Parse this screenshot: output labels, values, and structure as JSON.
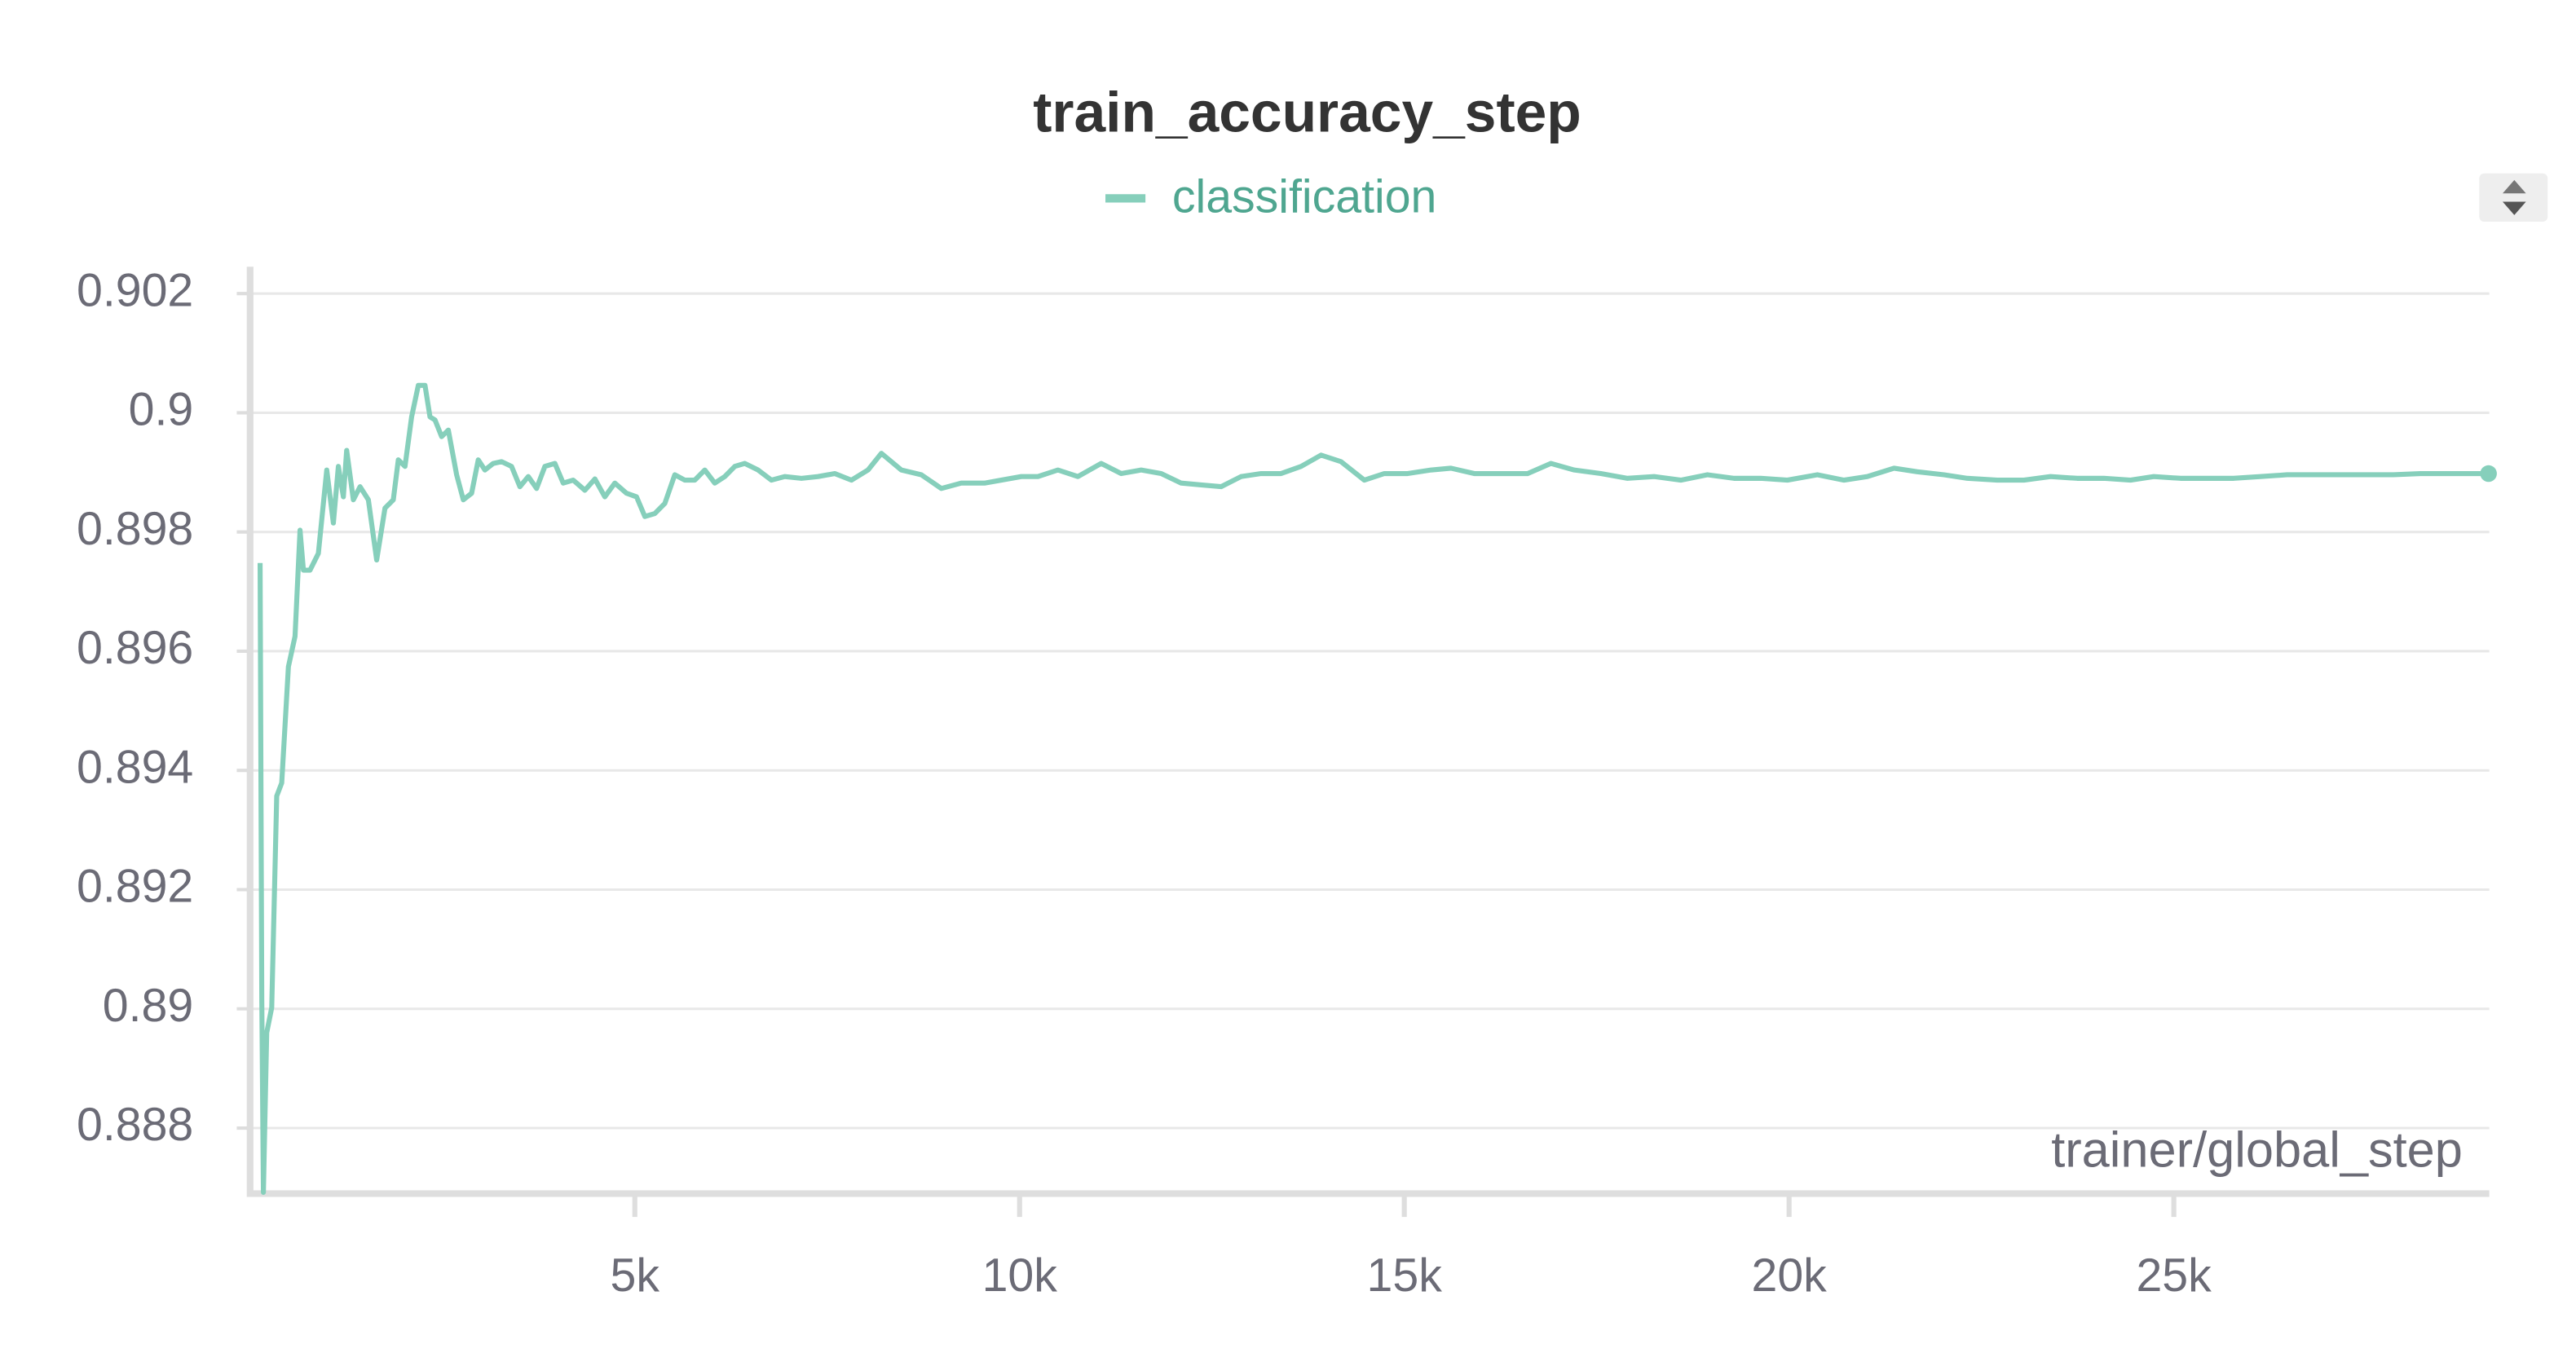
{
  "chart_data": {
    "type": "line",
    "title": "train_accuracy_step",
    "xlabel": "trainer/global_step",
    "legend": "top",
    "grid": true,
    "xlim": [
      0,
      29100
    ],
    "ylim": [
      0.8869,
      0.90245
    ],
    "xticks": [
      {
        "value": 5000,
        "label": "5k"
      },
      {
        "value": 10000,
        "label": "10k"
      },
      {
        "value": 15000,
        "label": "15k"
      },
      {
        "value": 20000,
        "label": "20k"
      },
      {
        "value": 25000,
        "label": "25k"
      }
    ],
    "yticks": [
      0.888,
      0.89,
      0.892,
      0.894,
      0.896,
      0.898,
      0.9,
      0.902
    ],
    "x": [
      130,
      152,
      173,
      216,
      281,
      346,
      411,
      498,
      584,
      649,
      693,
      779,
      887,
      996,
      1082,
      1147,
      1212,
      1255,
      1342,
      1429,
      1537,
      1645,
      1753,
      1861,
      1926,
      2013,
      2099,
      2186,
      2273,
      2338,
      2403,
      2489,
      2576,
      2684,
      2771,
      2879,
      2965,
      3052,
      3160,
      3268,
      3398,
      3506,
      3615,
      3723,
      3831,
      3961,
      4069,
      4199,
      4351,
      4481,
      4610,
      4740,
      4892,
      5022,
      5130,
      5260,
      5390,
      5519,
      5649,
      5779,
      5909,
      6039,
      6169,
      6299,
      6429,
      6602,
      6775,
      6948,
      7165,
      7381,
      7598,
      7814,
      8030,
      8204,
      8463,
      8723,
      8983,
      9242,
      9545,
      9762,
      10022,
      10238,
      10498,
      10758,
      11061,
      11320,
      11580,
      11840,
      12100,
      12359,
      12619,
      12879,
      13139,
      13398,
      13658,
      13918,
      14177,
      14480,
      14740,
      15043,
      15346,
      15606,
      15909,
      16255,
      16602,
      16905,
      17208,
      17554,
      17900,
      18247,
      18593,
      18939,
      19286,
      19632,
      19978,
      20368,
      20714,
      21017,
      21364,
      21667,
      22013,
      22316,
      22706,
      23052,
      23398,
      23745,
      24091,
      24437,
      24740,
      25087,
      25433,
      25779,
      26125,
      26472,
      26818,
      27164,
      27511,
      27857,
      28203,
      28549,
      28896,
      29090
    ],
    "series": [
      {
        "name": "classification",
        "color": "#86cfbb",
        "values": [
          0.89748,
          0.89016,
          0.88692,
          0.8896,
          0.89002,
          0.89357,
          0.89379,
          0.89574,
          0.89625,
          0.89803,
          0.89736,
          0.89736,
          0.89764,
          0.89904,
          0.89815,
          0.8991,
          0.89859,
          0.89937,
          0.89854,
          0.89876,
          0.89854,
          0.89753,
          0.8984,
          0.89854,
          0.89921,
          0.8991,
          0.89993,
          0.90046,
          0.90046,
          0.89993,
          0.89988,
          0.8996,
          0.89971,
          0.89896,
          0.89854,
          0.89865,
          0.89921,
          0.89904,
          0.89915,
          0.89918,
          0.8991,
          0.89876,
          0.89893,
          0.89873,
          0.8991,
          0.89915,
          0.89882,
          0.89887,
          0.8987,
          0.89889,
          0.89859,
          0.89882,
          0.89865,
          0.89859,
          0.89826,
          0.89831,
          0.89848,
          0.89896,
          0.89887,
          0.89887,
          0.89904,
          0.89882,
          0.89893,
          0.8991,
          0.89915,
          0.89904,
          0.89887,
          0.89893,
          0.8989,
          0.89893,
          0.89898,
          0.89887,
          0.89904,
          0.89932,
          0.89904,
          0.89896,
          0.89873,
          0.89882,
          0.89882,
          0.89887,
          0.89893,
          0.89893,
          0.89904,
          0.89893,
          0.89915,
          0.89898,
          0.89904,
          0.89898,
          0.89882,
          0.89879,
          0.89876,
          0.89893,
          0.89898,
          0.89898,
          0.8991,
          0.89929,
          0.89918,
          0.89887,
          0.89898,
          0.89898,
          0.89904,
          0.89907,
          0.89898,
          0.89898,
          0.89898,
          0.89915,
          0.89904,
          0.89898,
          0.8989,
          0.89893,
          0.89887,
          0.89896,
          0.8989,
          0.8989,
          0.89887,
          0.89896,
          0.89887,
          0.89893,
          0.89907,
          0.89901,
          0.89896,
          0.8989,
          0.89887,
          0.89887,
          0.89893,
          0.8989,
          0.8989,
          0.89887,
          0.89893,
          0.8989,
          0.8989,
          0.8989,
          0.89893,
          0.89896,
          0.89896,
          0.89896,
          0.89896,
          0.89896,
          0.89898,
          0.89898,
          0.89898,
          0.89898
        ]
      }
    ]
  }
}
